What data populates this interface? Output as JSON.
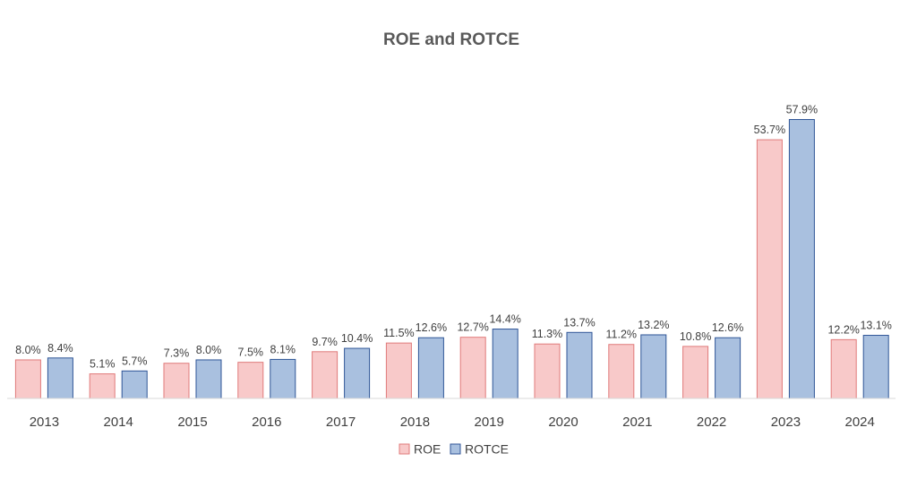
{
  "chart_data": {
    "type": "bar",
    "title": "ROE and ROTCE",
    "categories": [
      "2013",
      "2014",
      "2015",
      "2016",
      "2017",
      "2018",
      "2019",
      "2020",
      "2021",
      "2022",
      "2023",
      "2024"
    ],
    "series": [
      {
        "name": "ROE",
        "values": [
          8.0,
          5.1,
          7.3,
          7.5,
          9.7,
          11.5,
          12.7,
          11.3,
          11.2,
          10.8,
          53.7,
          12.2
        ],
        "labels": [
          "8.0%",
          "5.1%",
          "7.3%",
          "7.5%",
          "9.7%",
          "11.5%",
          "12.7%",
          "11.3%",
          "11.2%",
          "10.8%",
          "53.7%",
          "12.2%"
        ],
        "fill": "#F8C9C9",
        "stroke": "#E07A7A"
      },
      {
        "name": "ROTCE",
        "values": [
          8.4,
          5.7,
          8.0,
          8.1,
          10.4,
          12.6,
          14.4,
          13.7,
          13.2,
          12.6,
          57.9,
          13.1
        ],
        "labels": [
          "8.4%",
          "5.7%",
          "8.0%",
          "8.1%",
          "10.4%",
          "12.6%",
          "14.4%",
          "13.7%",
          "13.2%",
          "12.6%",
          "57.9%",
          "13.1%"
        ],
        "fill": "#A9C0DF",
        "stroke": "#2F5597"
      }
    ],
    "ylim": [
      0,
      60
    ],
    "grid": false,
    "legend_position": "bottom"
  }
}
